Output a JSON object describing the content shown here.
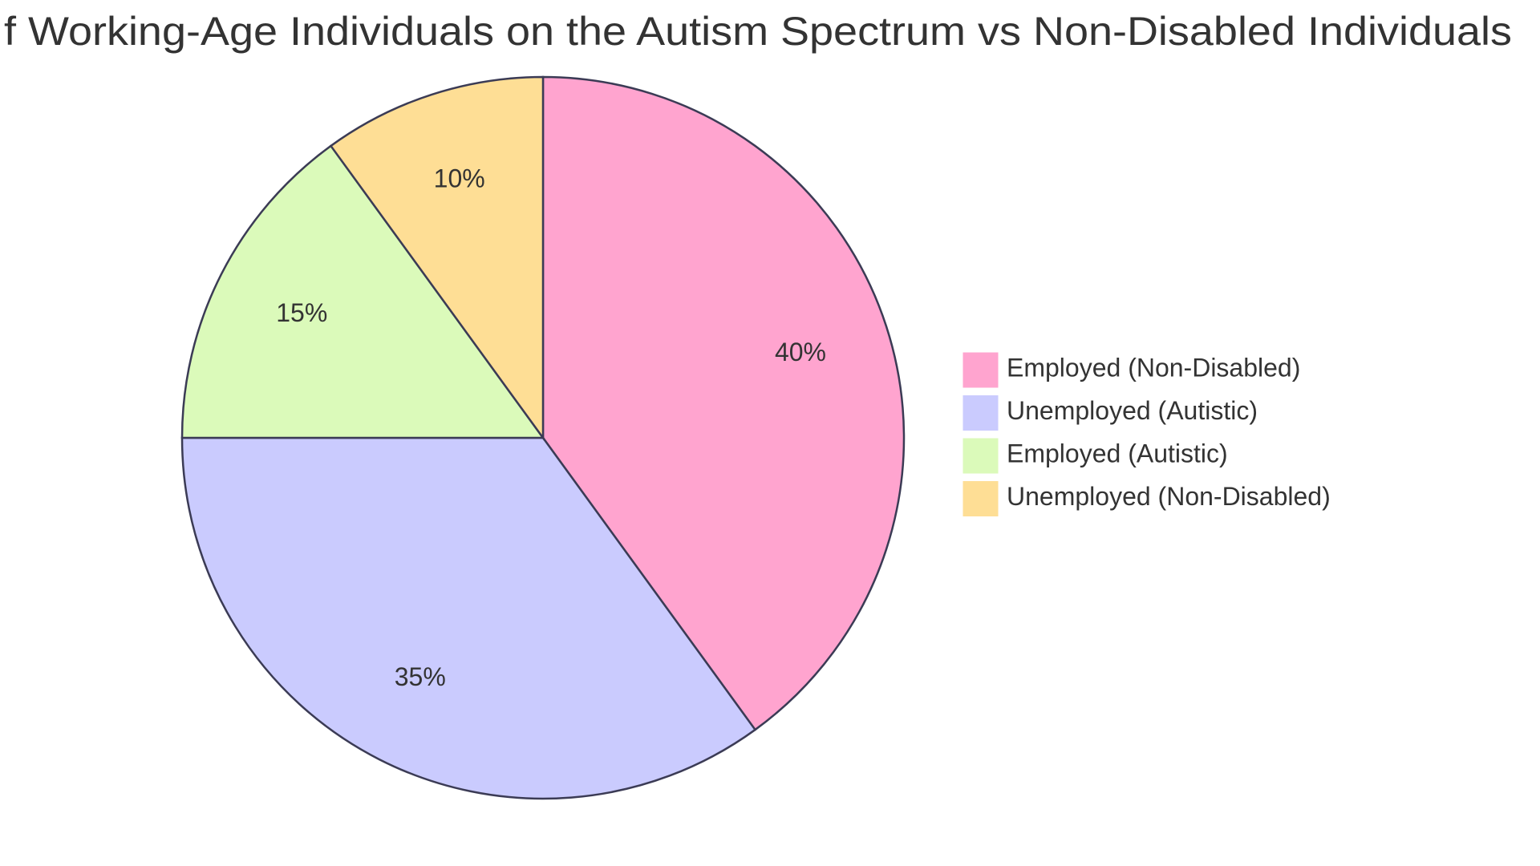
{
  "chart_data": {
    "type": "pie",
    "title": "f Working-Age Individuals on the Autism Spectrum vs Non-Disabled Individuals",
    "categories": [
      "Employed (Non-Disabled)",
      "Unemployed (Autistic)",
      "Employed (Autistic)",
      "Unemployed (Non-Disabled)"
    ],
    "values": [
      40,
      35,
      15,
      10
    ],
    "value_labels": [
      "40%",
      "35%",
      "15%",
      "10%"
    ],
    "colors": [
      "#ffa4cf",
      "#cacbfe",
      "#dbfaba",
      "#fede95"
    ],
    "legend": "right"
  }
}
